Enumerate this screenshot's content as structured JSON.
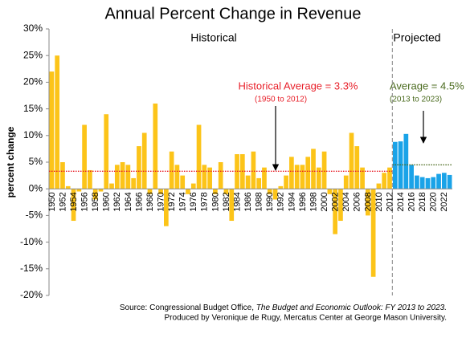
{
  "chart_data": {
    "type": "bar",
    "title": "Annual Percent Change in Revenue",
    "y_label": "percent change",
    "categories": [
      "1950",
      null,
      "1952",
      null,
      "1954",
      null,
      "1956",
      null,
      "1958",
      null,
      "1960",
      null,
      "1962",
      null,
      "1964",
      null,
      "1966",
      null,
      "1968",
      null,
      "1970",
      null,
      "1972",
      null,
      "1974",
      null,
      "1976",
      null,
      "1978",
      null,
      "1980",
      null,
      "1982",
      null,
      "1984",
      null,
      "1986",
      null,
      "1988",
      null,
      "1990",
      null,
      "1992",
      null,
      "1994",
      null,
      "1996",
      null,
      "1998",
      null,
      "2000",
      null,
      "2002",
      null,
      "2004",
      null,
      "2006",
      null,
      "2008",
      null,
      "2010",
      null,
      "2012",
      null,
      "2014",
      null,
      "2016",
      null,
      "2018",
      null,
      "2020",
      null,
      "2022",
      null
    ],
    "series": [
      {
        "name": "Historical",
        "color": "#fcc419",
        "values": [
          22,
          25,
          5,
          0.5,
          -6,
          -0.5,
          12,
          3.5,
          -2,
          -0.5,
          14,
          1,
          4.5,
          5,
          4.5,
          2,
          8,
          10.5,
          -1,
          16,
          -1,
          -7,
          7,
          4.5,
          2.5,
          -1,
          1,
          12,
          4.5,
          4,
          -1,
          5,
          -1,
          -6,
          6.5,
          6.5,
          2.5,
          7,
          2,
          4,
          -1,
          -2,
          0.5,
          2.5,
          6,
          4.5,
          4.5,
          6,
          7.5,
          4,
          7,
          -1,
          -8.5,
          -6,
          2.5,
          10.5,
          8,
          4,
          -5,
          -16.5,
          1,
          3,
          4,
          null,
          null,
          null,
          null,
          null,
          null,
          null,
          null,
          null,
          null,
          null
        ],
        "average": {
          "value": 3.3,
          "label": "Historical Average = 3.3%",
          "note": "(1950 to 2012)",
          "color": "#e8202a"
        }
      },
      {
        "name": "Projected",
        "color": "#1aa3e8",
        "values": [
          null,
          null,
          null,
          null,
          null,
          null,
          null,
          null,
          null,
          null,
          null,
          null,
          null,
          null,
          null,
          null,
          null,
          null,
          null,
          null,
          null,
          null,
          null,
          null,
          null,
          null,
          null,
          null,
          null,
          null,
          null,
          null,
          null,
          null,
          null,
          null,
          null,
          null,
          null,
          null,
          null,
          null,
          null,
          null,
          null,
          null,
          null,
          null,
          null,
          null,
          null,
          null,
          null,
          null,
          null,
          null,
          null,
          null,
          null,
          null,
          null,
          null,
          null,
          8.8,
          8.9,
          10.3,
          4.5,
          2.5,
          2.2,
          2.0,
          2.2,
          2.8,
          3.0,
          2.6
        ],
        "average": {
          "value": 4.5,
          "label": "Average = 4.5%",
          "note": "(2013 to 2023)",
          "color": "#4b6b1f"
        }
      }
    ],
    "ylim": [
      -20,
      30
    ],
    "yticks": [
      {
        "value": -20,
        "label": "-20%"
      },
      {
        "value": -15,
        "label": "-15%"
      },
      {
        "value": -10,
        "label": "-10%"
      },
      {
        "value": -5,
        "label": "-5%"
      },
      {
        "value": 0,
        "label": "0%"
      },
      {
        "value": 5,
        "label": "5%"
      },
      {
        "value": 10,
        "label": "10%"
      },
      {
        "value": 15,
        "label": "15%"
      },
      {
        "value": 20,
        "label": "20%"
      },
      {
        "value": 25,
        "label": "25%"
      },
      {
        "value": 30,
        "label": "30%"
      }
    ],
    "source": {
      "prefix": "Source: Congressional Budget Office, ",
      "publication": "The Budget and Economic Outlook: FY 2013 to 2023.",
      "credit": "Produced by Veronique de Rugy, Mercatus Center at George Mason University."
    }
  }
}
